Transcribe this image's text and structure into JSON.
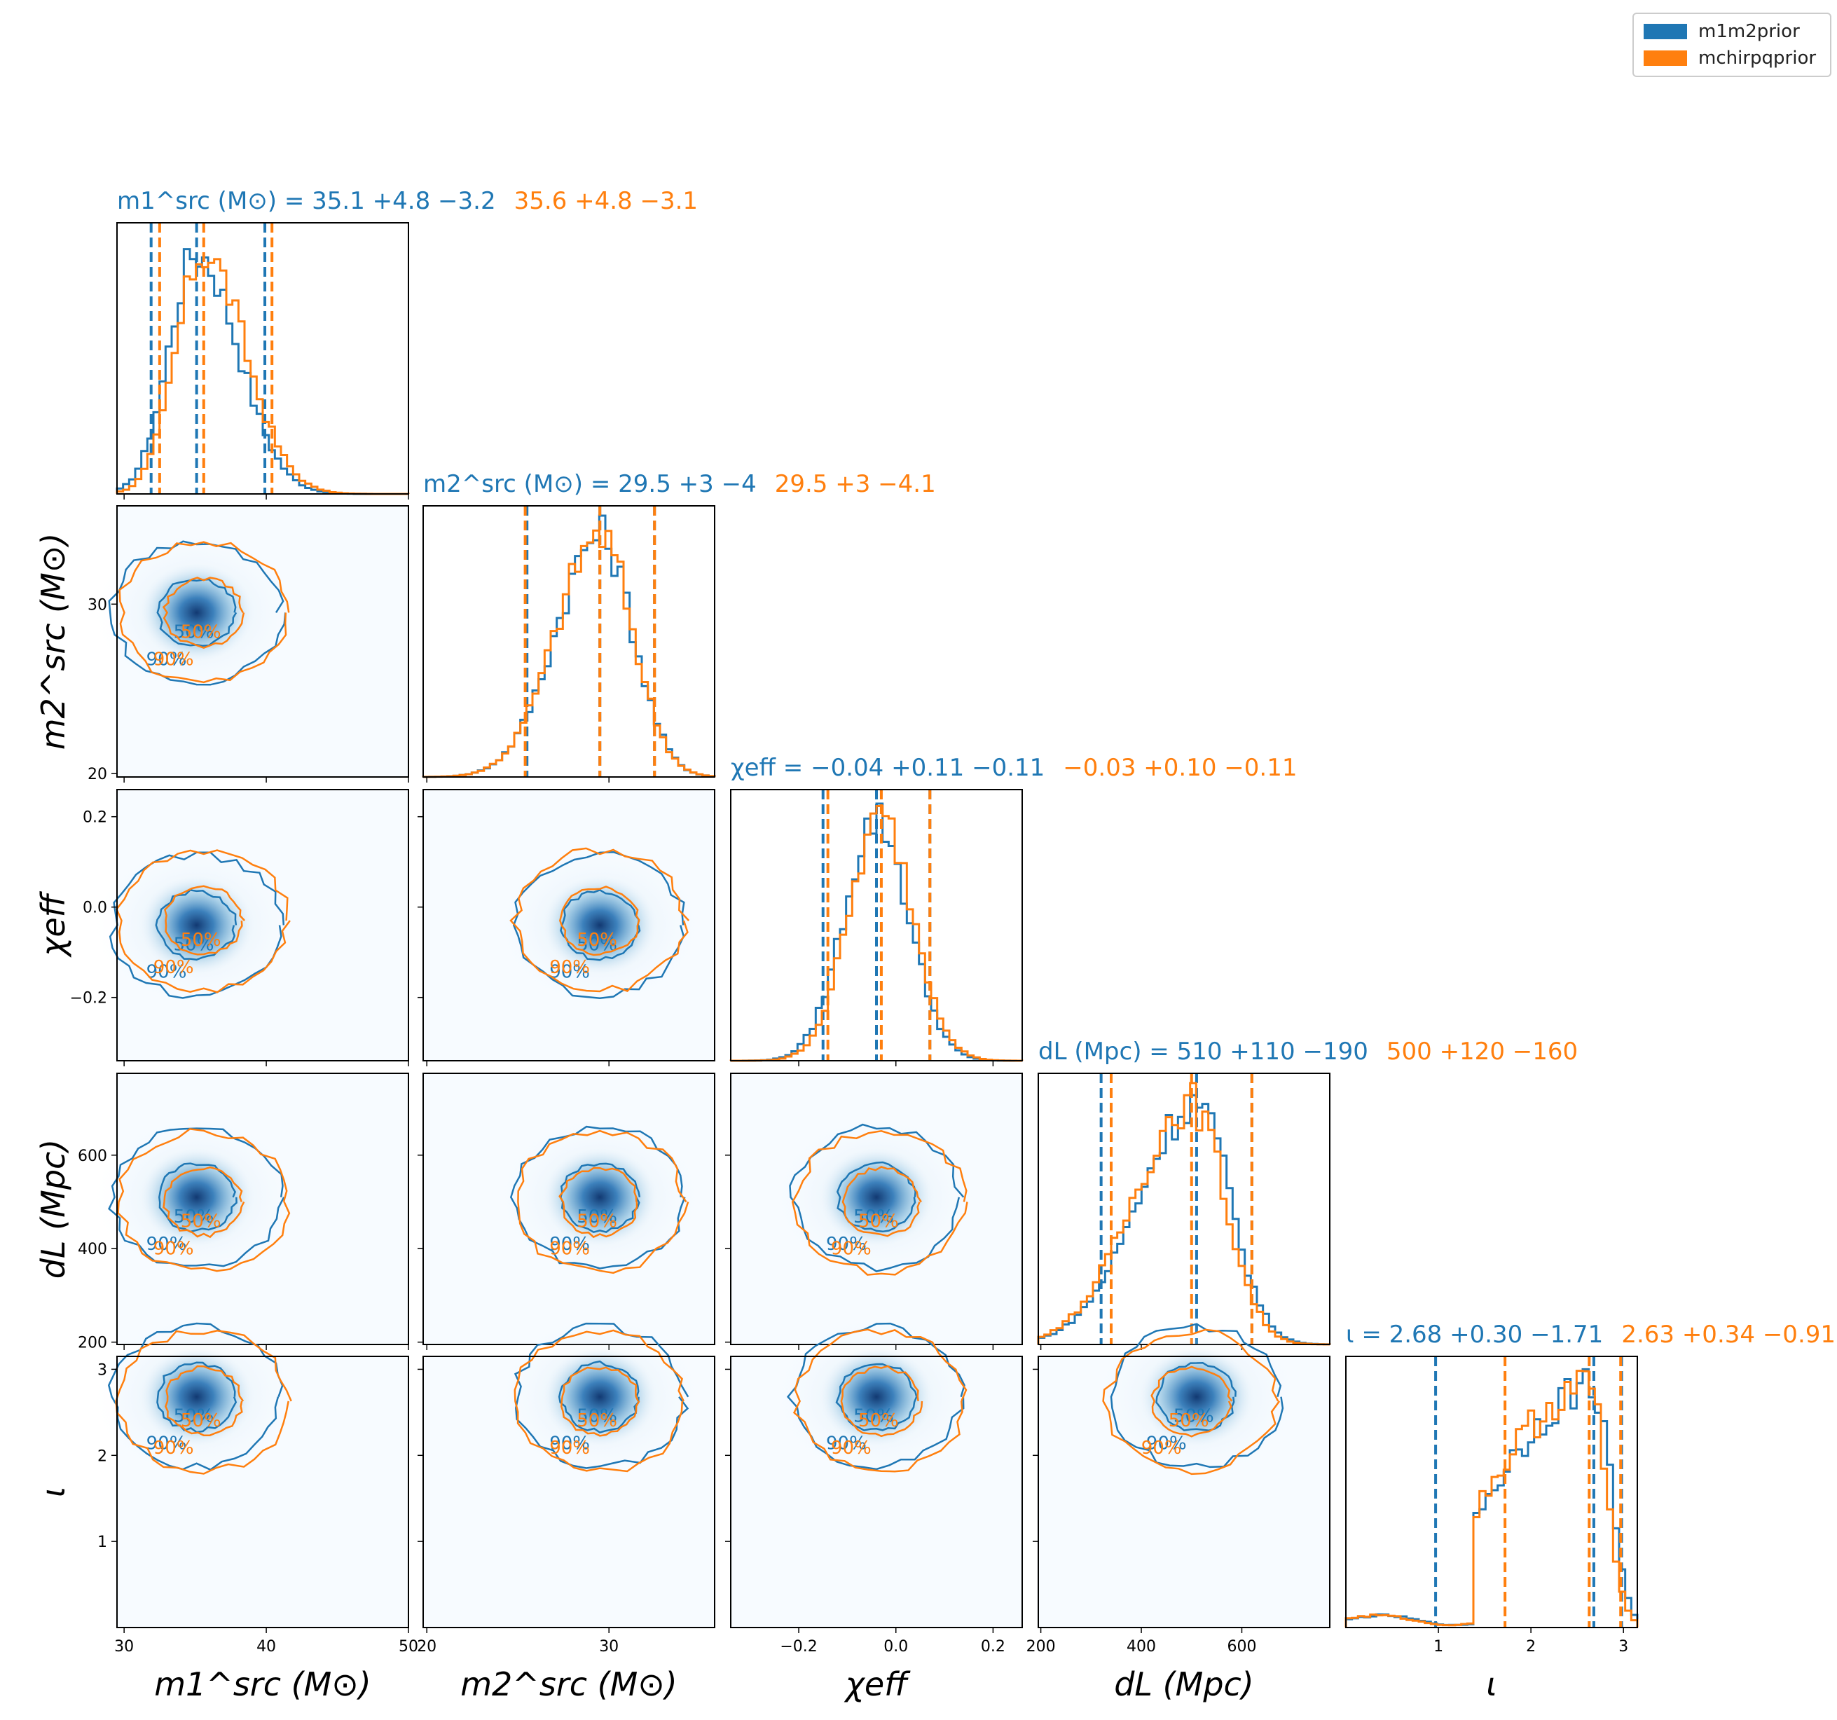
{
  "legend": {
    "entries": [
      {
        "label": "m1m2prior",
        "color": "#1f77b4"
      },
      {
        "label": "mchirpqprior",
        "color": "#ff7f0e"
      }
    ]
  },
  "chart_data": {
    "type": "corner",
    "series": [
      {
        "name": "m1m2prior",
        "color": "#1f77b4"
      },
      {
        "name": "mchirpqprior",
        "color": "#ff7f0e"
      }
    ],
    "parameters": [
      {
        "key": "m1",
        "axis_label": "m1^src (M⊙)",
        "range": [
          29.5,
          50
        ],
        "ticks": [
          30,
          40,
          50
        ],
        "tick_labels": [
          "30",
          "40",
          "50"
        ],
        "title": [
          {
            "series": "m1m2prior",
            "text": "m1^src (M⊙) = 35.1 +4.8 −3.2",
            "median": 35.1,
            "plus": "+4.8",
            "minus": "−3.2"
          },
          {
            "series": "mchirpqprior",
            "text": "35.6 +4.8 −3.1",
            "median": 35.6,
            "plus": "+4.8",
            "minus": "−3.1"
          }
        ],
        "quantiles": {
          "m1m2prior": [
            31.9,
            35.1,
            39.9
          ],
          "mchirpqprior": [
            32.5,
            35.6,
            40.4
          ]
        }
      },
      {
        "key": "m2",
        "axis_label": "m2^src (M⊙)",
        "range": [
          19.8,
          35.8
        ],
        "ticks": [
          20,
          30
        ],
        "tick_labels": [
          "20",
          "30"
        ],
        "title": [
          {
            "series": "m1m2prior",
            "text": "m2^src (M⊙) = 29.5 +3 −4",
            "median": 29.5,
            "plus": "+3",
            "minus": "−4"
          },
          {
            "series": "mchirpqprior",
            "text": "29.5 +3 −4.1",
            "median": 29.5,
            "plus": "+3",
            "minus": "−4.1"
          }
        ],
        "quantiles": {
          "m1m2prior": [
            25.5,
            29.5,
            32.5
          ],
          "mchirpqprior": [
            25.4,
            29.5,
            32.5
          ]
        }
      },
      {
        "key": "chi_eff",
        "axis_label": "χeff",
        "range": [
          -0.34,
          0.26
        ],
        "ticks": [
          -0.2,
          0.0,
          0.2
        ],
        "tick_labels": [
          "−0.2",
          "0.0",
          "0.2"
        ],
        "title": [
          {
            "series": "m1m2prior",
            "text": "χeff = −0.04 +0.11 −0.11",
            "median": -0.04,
            "plus": "+0.11",
            "minus": "−0.11"
          },
          {
            "series": "mchirpqprior",
            "text": "−0.03 +0.10 −0.11",
            "median": -0.03,
            "plus": "+0.10",
            "minus": "−0.11"
          }
        ],
        "quantiles": {
          "m1m2prior": [
            -0.15,
            -0.04,
            0.07
          ],
          "mchirpqprior": [
            -0.14,
            -0.03,
            0.07
          ]
        }
      },
      {
        "key": "dL",
        "axis_label": "dL (Mpc)",
        "range": [
          195,
          775
        ],
        "ticks": [
          200,
          400,
          600
        ],
        "tick_labels": [
          "200",
          "400",
          "600"
        ],
        "title": [
          {
            "series": "m1m2prior",
            "text": "dL (Mpc) = 510 +110 −190",
            "median": 510,
            "plus": "+110",
            "minus": "−190"
          },
          {
            "series": "mchirpqprior",
            "text": "500 +120 −160",
            "median": 500,
            "plus": "+120",
            "minus": "−160"
          }
        ],
        "quantiles": {
          "m1m2prior": [
            320,
            510,
            620
          ],
          "mchirpqprior": [
            340,
            500,
            620
          ]
        }
      },
      {
        "key": "iota",
        "axis_label": "ι",
        "range": [
          0.0,
          3.15
        ],
        "ticks": [
          1,
          2,
          3
        ],
        "tick_labels": [
          "1",
          "2",
          "3"
        ],
        "title": [
          {
            "series": "m1m2prior",
            "text": "ι = 2.68 +0.30 −1.71",
            "median": 2.68,
            "plus": "+0.30",
            "minus": "−1.71"
          },
          {
            "series": "mchirpqprior",
            "text": "2.63 +0.34 −0.91",
            "median": 2.63,
            "plus": "+0.34",
            "minus": "−0.91"
          }
        ],
        "quantiles": {
          "m1m2prior": [
            0.97,
            2.68,
            2.98
          ],
          "mchirpqprior": [
            1.72,
            2.63,
            2.97
          ]
        }
      }
    ],
    "posterior_summary": {
      "m1m2prior": {
        "m1": 35.1,
        "m2": 29.5,
        "chi_eff": -0.04,
        "dL": 510,
        "iota": 2.68
      },
      "mchirpqprior": {
        "m1": 35.6,
        "m2": 29.5,
        "chi_eff": -0.03,
        "dL": 500,
        "iota": 2.63
      }
    },
    "contour_levels": [
      "50%",
      "90%"
    ],
    "grid": false
  }
}
